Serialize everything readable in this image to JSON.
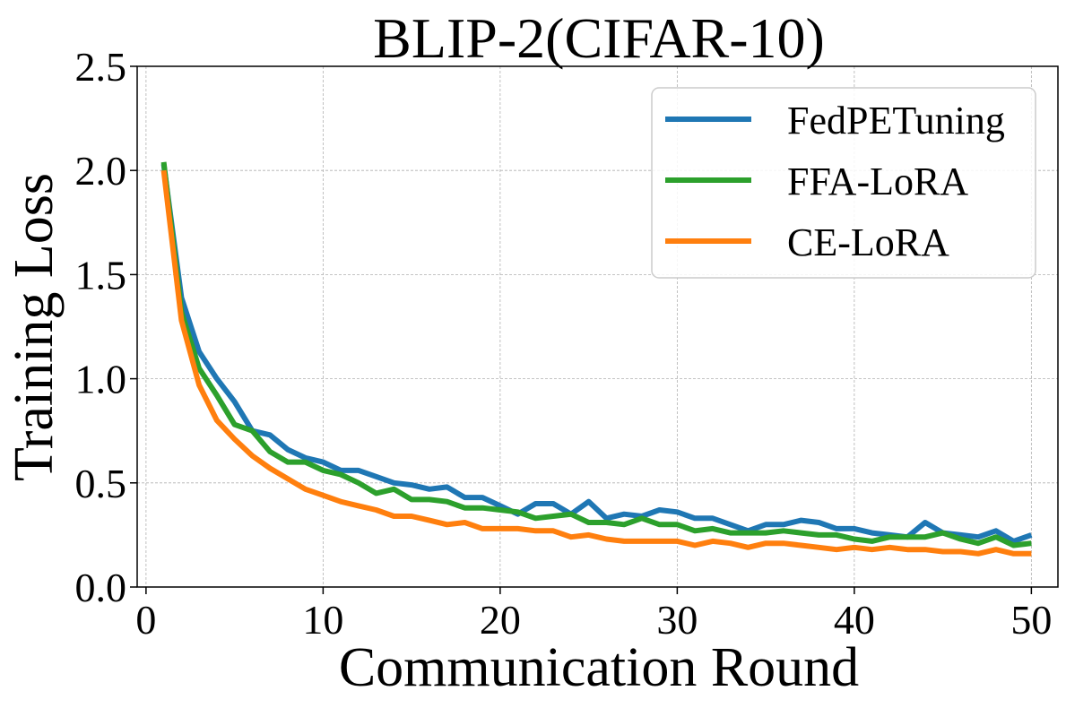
{
  "chart_data": {
    "type": "line",
    "title": "BLIP-2(CIFAR-10)",
    "xlabel": "Communication Round",
    "ylabel": "Training Loss",
    "xlim": [
      -0.5,
      51.5
    ],
    "ylim": [
      0.0,
      2.5
    ],
    "xticks": [
      0,
      10,
      20,
      30,
      40,
      50
    ],
    "xtick_labels": [
      "0",
      "10",
      "20",
      "30",
      "40",
      "50"
    ],
    "yticks": [
      0.0,
      0.5,
      1.0,
      1.5,
      2.0,
      2.5
    ],
    "ytick_labels": [
      "0.0",
      "0.5",
      "1.0",
      "1.5",
      "2.0",
      "2.5"
    ],
    "grid": true,
    "legend_position": "top-right",
    "x": [
      1,
      2,
      3,
      4,
      5,
      6,
      7,
      8,
      9,
      10,
      11,
      12,
      13,
      14,
      15,
      16,
      17,
      18,
      19,
      20,
      21,
      22,
      23,
      24,
      25,
      26,
      27,
      28,
      29,
      30,
      31,
      32,
      33,
      34,
      35,
      36,
      37,
      38,
      39,
      40,
      41,
      42,
      43,
      44,
      45,
      46,
      47,
      48,
      49,
      50
    ],
    "series": [
      {
        "name": "FedPETuning",
        "color": "#1f77b4",
        "values": [
          2.03,
          1.39,
          1.13,
          1.0,
          0.89,
          0.75,
          0.73,
          0.66,
          0.62,
          0.6,
          0.56,
          0.56,
          0.53,
          0.5,
          0.49,
          0.47,
          0.48,
          0.43,
          0.43,
          0.39,
          0.35,
          0.4,
          0.4,
          0.35,
          0.41,
          0.33,
          0.35,
          0.34,
          0.37,
          0.36,
          0.33,
          0.33,
          0.3,
          0.27,
          0.3,
          0.3,
          0.32,
          0.31,
          0.28,
          0.28,
          0.26,
          0.25,
          0.24,
          0.31,
          0.26,
          0.25,
          0.24,
          0.27,
          0.22,
          0.25
        ]
      },
      {
        "name": "FFA-LoRA",
        "color": "#2ca02c",
        "values": [
          2.04,
          1.32,
          1.05,
          0.92,
          0.78,
          0.75,
          0.65,
          0.6,
          0.6,
          0.56,
          0.54,
          0.5,
          0.45,
          0.47,
          0.42,
          0.42,
          0.41,
          0.38,
          0.38,
          0.37,
          0.36,
          0.33,
          0.34,
          0.35,
          0.31,
          0.31,
          0.3,
          0.33,
          0.3,
          0.3,
          0.27,
          0.28,
          0.26,
          0.26,
          0.26,
          0.27,
          0.26,
          0.25,
          0.25,
          0.23,
          0.22,
          0.24,
          0.24,
          0.24,
          0.26,
          0.23,
          0.21,
          0.24,
          0.2,
          0.21
        ]
      },
      {
        "name": "CE-LoRA",
        "color": "#ff7f0e",
        "values": [
          2.0,
          1.28,
          0.97,
          0.8,
          0.71,
          0.63,
          0.57,
          0.52,
          0.47,
          0.44,
          0.41,
          0.39,
          0.37,
          0.34,
          0.34,
          0.32,
          0.3,
          0.31,
          0.28,
          0.28,
          0.28,
          0.27,
          0.27,
          0.24,
          0.25,
          0.23,
          0.22,
          0.22,
          0.22,
          0.22,
          0.2,
          0.22,
          0.21,
          0.19,
          0.21,
          0.21,
          0.2,
          0.19,
          0.18,
          0.19,
          0.18,
          0.19,
          0.18,
          0.18,
          0.17,
          0.17,
          0.16,
          0.18,
          0.16,
          0.16
        ]
      }
    ]
  }
}
